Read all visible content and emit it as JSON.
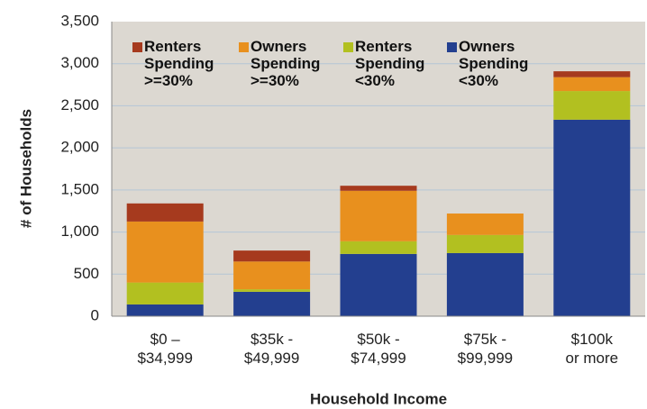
{
  "chart_data": {
    "type": "stacked_bar",
    "x_label": "Household Income",
    "y_label": "# of Households",
    "categories": [
      "$0 – $34,999",
      "$35k - $49,999",
      "$50k - $74,999",
      "$75k - $99,999",
      "$100k or more"
    ],
    "series": [
      {
        "name": "Owners Spending <30%",
        "color": "#233f8f",
        "values": [
          140,
          290,
          740,
          750,
          2335
        ]
      },
      {
        "name": "Renters Spending <30%",
        "color": "#b2c020",
        "values": [
          260,
          30,
          150,
          215,
          340
        ]
      },
      {
        "name": "Owners Spending >=30%",
        "color": "#e8901e",
        "values": [
          725,
          330,
          600,
          255,
          165
        ]
      },
      {
        "name": "Renters Spending >=30%",
        "color": "#a63a1e",
        "values": [
          215,
          130,
          60,
          0,
          70
        ]
      }
    ],
    "ylim": [
      0,
      3500
    ],
    "yticks": [
      0,
      500,
      {
        "value": 1000,
        "label": "1,000"
      },
      {
        "value": 1500,
        "label": "1,500"
      },
      {
        "value": 2000,
        "label": "2,000"
      },
      {
        "value": 2500,
        "label": "2,500"
      },
      {
        "value": 3000,
        "label": "3,000"
      },
      {
        "value": 3500,
        "label": "3,500"
      }
    ],
    "grid": true,
    "legend": "top-left"
  }
}
